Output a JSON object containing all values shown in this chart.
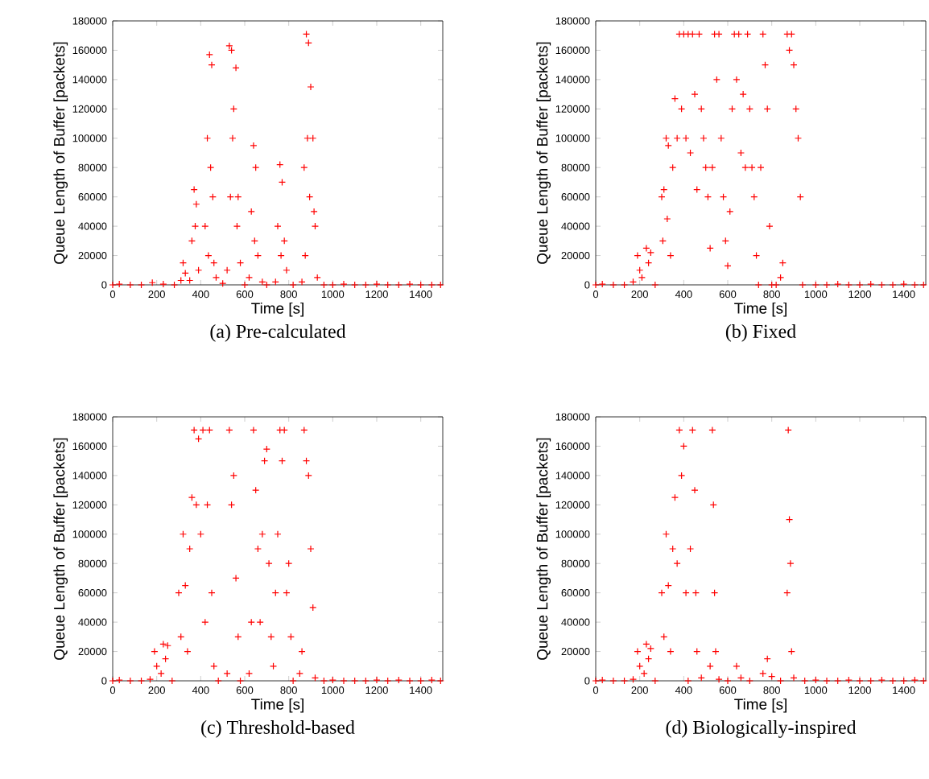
{
  "chart_data": [
    {
      "type": "scatter",
      "title": "(a)  Pre-calculated",
      "xlabel": "Time [s]",
      "ylabel": "Queue Length of Buffer [packets]",
      "xlim": [
        0,
        1500
      ],
      "ylim": [
        0,
        180000
      ],
      "xticks": [
        0,
        200,
        400,
        600,
        800,
        1000,
        1200,
        1400
      ],
      "yticks": [
        0,
        20000,
        40000,
        60000,
        80000,
        100000,
        120000,
        140000,
        160000,
        180000
      ],
      "marker": "cross",
      "color": "#ff0000",
      "x": [
        0,
        30,
        80,
        130,
        180,
        230,
        280,
        310,
        320,
        330,
        350,
        360,
        370,
        375,
        380,
        390,
        420,
        430,
        435,
        440,
        445,
        450,
        455,
        460,
        470,
        500,
        520,
        530,
        535,
        540,
        545,
        550,
        560,
        565,
        570,
        580,
        600,
        620,
        630,
        640,
        645,
        650,
        660,
        680,
        700,
        740,
        750,
        760,
        765,
        770,
        780,
        790,
        820,
        860,
        870,
        875,
        880,
        885,
        890,
        895,
        900,
        910,
        915,
        920,
        930,
        960,
        1000,
        1050,
        1100,
        1150,
        1200,
        1250,
        1300,
        1350,
        1400,
        1450,
        1490
      ],
      "values": [
        0,
        500,
        0,
        0,
        1500,
        500,
        0,
        3000,
        15000,
        8000,
        3000,
        30000,
        65000,
        40000,
        55000,
        10000,
        40000,
        100000,
        20000,
        157000,
        80000,
        150000,
        60000,
        15000,
        5000,
        1000,
        10000,
        163000,
        60000,
        160000,
        100000,
        120000,
        148000,
        40000,
        60000,
        15000,
        0,
        5000,
        50000,
        95000,
        30000,
        80000,
        20000,
        2000,
        0,
        2000,
        40000,
        82000,
        20000,
        70000,
        30000,
        10000,
        0,
        2000,
        80000,
        20000,
        171000,
        100000,
        165000,
        60000,
        135000,
        100000,
        50000,
        40000,
        5000,
        0,
        0,
        500,
        0,
        0,
        500,
        0,
        0,
        500,
        0,
        0,
        0
      ]
    },
    {
      "type": "scatter",
      "title": "(b)  Fixed",
      "xlabel": "Time [s]",
      "ylabel": "Queue Length of Buffer [packets]",
      "xlim": [
        0,
        1500
      ],
      "ylim": [
        0,
        180000
      ],
      "xticks": [
        0,
        200,
        400,
        600,
        800,
        1000,
        1200,
        1400
      ],
      "yticks": [
        0,
        20000,
        40000,
        60000,
        80000,
        100000,
        120000,
        140000,
        160000,
        180000
      ],
      "marker": "cross",
      "color": "#ff0000",
      "x": [
        0,
        30,
        80,
        130,
        170,
        190,
        200,
        210,
        230,
        240,
        250,
        270,
        300,
        305,
        310,
        320,
        325,
        330,
        340,
        350,
        360,
        370,
        380,
        390,
        400,
        410,
        420,
        430,
        440,
        450,
        460,
        470,
        480,
        490,
        500,
        510,
        520,
        530,
        540,
        550,
        560,
        570,
        580,
        590,
        600,
        610,
        620,
        630,
        640,
        650,
        660,
        670,
        680,
        690,
        700,
        710,
        720,
        730,
        740,
        750,
        760,
        770,
        780,
        790,
        800,
        820,
        840,
        850,
        870,
        880,
        890,
        900,
        910,
        920,
        930,
        940,
        1000,
        1050,
        1100,
        1150,
        1200,
        1250,
        1300,
        1350,
        1400,
        1450,
        1490
      ],
      "values": [
        0,
        500,
        0,
        0,
        2000,
        20000,
        10000,
        5000,
        25000,
        15000,
        22000,
        0,
        60000,
        30000,
        65000,
        100000,
        45000,
        95000,
        20000,
        80000,
        127000,
        100000,
        171000,
        120000,
        171000,
        100000,
        171000,
        90000,
        171000,
        130000,
        65000,
        171000,
        120000,
        100000,
        80000,
        60000,
        25000,
        80000,
        171000,
        140000,
        171000,
        100000,
        60000,
        30000,
        13000,
        50000,
        120000,
        171000,
        140000,
        171000,
        90000,
        130000,
        80000,
        171000,
        120000,
        80000,
        60000,
        20000,
        0,
        80000,
        171000,
        150000,
        120000,
        40000,
        0,
        0,
        5000,
        15000,
        171000,
        160000,
        171000,
        150000,
        120000,
        100000,
        60000,
        0,
        0,
        0,
        500,
        0,
        0,
        500,
        0,
        0,
        500,
        0,
        0
      ]
    },
    {
      "type": "scatter",
      "title": "(c)  Threshold-based",
      "xlabel": "Time [s]",
      "ylabel": "Queue Length of Buffer [packets]",
      "xlim": [
        0,
        1500
      ],
      "ylim": [
        0,
        180000
      ],
      "xticks": [
        0,
        200,
        400,
        600,
        800,
        1000,
        1200,
        1400
      ],
      "yticks": [
        0,
        20000,
        40000,
        60000,
        80000,
        100000,
        120000,
        140000,
        160000,
        180000
      ],
      "marker": "cross",
      "color": "#ff0000",
      "x": [
        0,
        30,
        80,
        130,
        170,
        190,
        200,
        220,
        230,
        240,
        250,
        270,
        300,
        310,
        320,
        330,
        340,
        350,
        360,
        370,
        380,
        390,
        400,
        410,
        420,
        430,
        440,
        450,
        460,
        480,
        520,
        530,
        540,
        550,
        560,
        570,
        580,
        620,
        630,
        640,
        650,
        660,
        670,
        680,
        690,
        700,
        710,
        720,
        730,
        740,
        750,
        760,
        770,
        780,
        790,
        800,
        810,
        820,
        850,
        860,
        870,
        880,
        890,
        900,
        910,
        920,
        960,
        1000,
        1050,
        1100,
        1150,
        1200,
        1250,
        1300,
        1350,
        1400,
        1450,
        1490
      ],
      "values": [
        0,
        500,
        0,
        0,
        1000,
        20000,
        10000,
        5000,
        25000,
        15000,
        24000,
        0,
        60000,
        30000,
        100000,
        65000,
        20000,
        90000,
        125000,
        171000,
        120000,
        165000,
        100000,
        171000,
        40000,
        120000,
        171000,
        60000,
        10000,
        0,
        5000,
        171000,
        120000,
        140000,
        70000,
        30000,
        0,
        5000,
        40000,
        171000,
        130000,
        90000,
        40000,
        100000,
        150000,
        158000,
        80000,
        30000,
        10000,
        60000,
        100000,
        171000,
        150000,
        171000,
        60000,
        80000,
        30000,
        0,
        5000,
        20000,
        171000,
        150000,
        140000,
        90000,
        50000,
        2000,
        0,
        500,
        0,
        0,
        0,
        500,
        0,
        500,
        0,
        0,
        500,
        0
      ]
    },
    {
      "type": "scatter",
      "title": "(d)  Biologically-inspired",
      "xlabel": "Time [s]",
      "ylabel": "Queue Length of Buffer [packets]",
      "xlim": [
        0,
        1500
      ],
      "ylim": [
        0,
        180000
      ],
      "xticks": [
        0,
        200,
        400,
        600,
        800,
        1000,
        1200,
        1400
      ],
      "yticks": [
        0,
        20000,
        40000,
        60000,
        80000,
        100000,
        120000,
        140000,
        160000,
        180000
      ],
      "marker": "cross",
      "color": "#ff0000",
      "x": [
        0,
        30,
        80,
        130,
        170,
        190,
        200,
        220,
        230,
        240,
        250,
        270,
        300,
        310,
        320,
        330,
        340,
        350,
        360,
        370,
        380,
        390,
        400,
        410,
        420,
        430,
        440,
        450,
        455,
        460,
        480,
        520,
        530,
        535,
        540,
        545,
        560,
        600,
        640,
        660,
        700,
        760,
        780,
        800,
        840,
        870,
        875,
        880,
        885,
        890,
        900,
        950,
        1000,
        1050,
        1100,
        1150,
        1200,
        1250,
        1300,
        1350,
        1400,
        1450,
        1490
      ],
      "values": [
        0,
        500,
        0,
        0,
        1000,
        20000,
        10000,
        5000,
        25000,
        15000,
        22000,
        0,
        60000,
        30000,
        100000,
        65000,
        20000,
        90000,
        125000,
        80000,
        171000,
        140000,
        160000,
        60000,
        0,
        90000,
        171000,
        130000,
        60000,
        20000,
        2000,
        10000,
        171000,
        120000,
        60000,
        20000,
        1000,
        0,
        10000,
        2000,
        0,
        5000,
        15000,
        3000,
        0,
        60000,
        171000,
        110000,
        80000,
        20000,
        2000,
        0,
        500,
        0,
        0,
        500,
        0,
        0,
        500,
        0,
        0,
        500,
        0
      ]
    }
  ]
}
